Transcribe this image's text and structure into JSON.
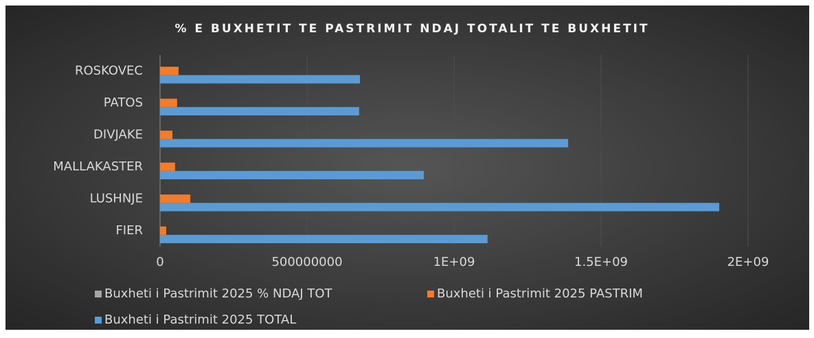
{
  "chart_data": {
    "type": "bar",
    "orientation": "horizontal",
    "title": "% E BUXHETIT TE PASTRIMIT NDAJ TOTALIT TE BUXHETIT",
    "categories": [
      "FIER",
      "LUSHNJE",
      "MALLAKASTER",
      "DIVJAKE",
      "PATOS",
      "ROSKOVEC"
    ],
    "series": [
      {
        "name": "Buxheti i Pastrimit 2025 % NDAJ TOT",
        "color": "#a5a5a5",
        "values": [
          0,
          0,
          0,
          0,
          0,
          0
        ]
      },
      {
        "name": "Buxheti i Pastrimit 2025 PASTRIM",
        "color": "#ed7d31",
        "values": [
          21000000,
          103000000,
          51000000,
          42000000,
          58000000,
          63000000
        ]
      },
      {
        "name": "Buxheti i Pastrimit 2025 TOTAL",
        "color": "#5b9bd5",
        "values": [
          1114000000,
          1902000000,
          897000000,
          1388000000,
          677000000,
          680000000
        ]
      }
    ],
    "xlim": [
      0,
      2000000000
    ],
    "xticks": [
      0,
      500000000,
      {
        "value": 1000000000,
        "label": "1E+09"
      },
      {
        "value": 1500000000,
        "label": "1.5E+09"
      },
      {
        "value": 2000000000,
        "label": "2E+09"
      }
    ],
    "grid": true,
    "legend": "bottom"
  }
}
